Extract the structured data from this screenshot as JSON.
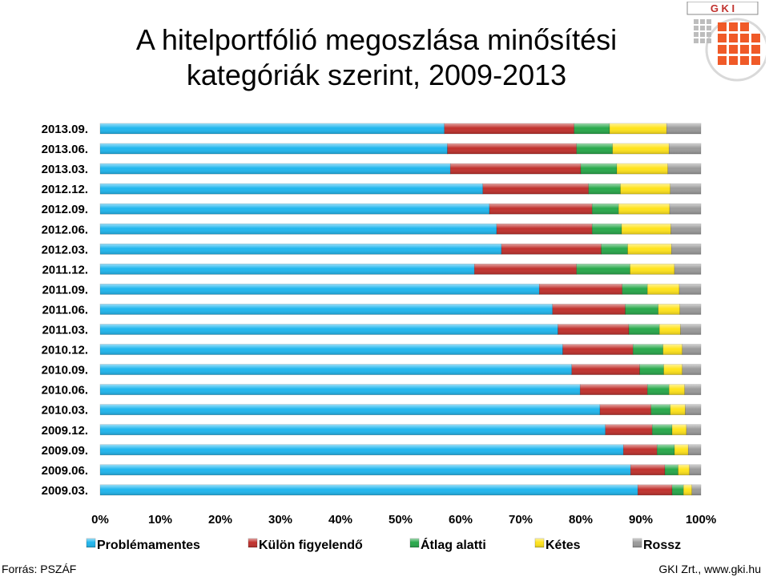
{
  "title": {
    "line1": "A hitelportfólió megoszlása minősítési",
    "line2": "kategóriák szerint, 2009-2013"
  },
  "logo": {
    "text": "G K I"
  },
  "colors": {
    "problemamentes": "#1fb6ee",
    "kulon": "#c0302c",
    "atlag": "#27a84a",
    "ketes": "#ffe31a",
    "rossz": "#9a9a9a"
  },
  "footer": {
    "source": "Forrás: PSZÁF",
    "credit": "GKI Zrt., www.gki.hu"
  },
  "chart_data": {
    "type": "bar",
    "orientation": "horizontal",
    "stacked": "percent",
    "categories": [
      "2013.09.",
      "2013.06.",
      "2013.03.",
      "2012.12.",
      "2012.09.",
      "2012.06.",
      "2012.03.",
      "2011.12.",
      "2011.09.",
      "2011.06.",
      "2011.03.",
      "2010.12.",
      "2010.09.",
      "2010.06.",
      "2010.03.",
      "2009.12.",
      "2009.09.",
      "2009.06.",
      "2009.03."
    ],
    "series": [
      {
        "name": "Problémamentes",
        "color": "#1fb6ee",
        "values": [
          57.3,
          57.8,
          58.3,
          63.7,
          64.8,
          66.0,
          66.8,
          62.3,
          73.1,
          75.3,
          76.2,
          77.0,
          78.5,
          79.9,
          83.2,
          84.1,
          87.1,
          88.3,
          89.5
        ]
      },
      {
        "name": "Külön figyelendő",
        "color": "#c0302c",
        "values": [
          21.6,
          21.5,
          21.7,
          17.6,
          17.1,
          15.9,
          16.6,
          17.0,
          13.8,
          12.1,
          11.8,
          11.7,
          11.3,
          11.2,
          8.5,
          7.8,
          5.6,
          5.7,
          5.7
        ]
      },
      {
        "name": "Átlag alatti",
        "color": "#27a84a",
        "values": [
          5.9,
          6.0,
          6.0,
          5.3,
          4.4,
          4.9,
          4.4,
          8.9,
          4.2,
          5.5,
          5.1,
          5.0,
          4.0,
          3.6,
          3.2,
          3.3,
          2.9,
          2.2,
          1.9
        ]
      },
      {
        "name": "Kétes",
        "color": "#ffe31a",
        "values": [
          9.5,
          9.4,
          8.5,
          8.3,
          8.5,
          8.2,
          7.3,
          7.4,
          5.3,
          3.6,
          3.5,
          3.2,
          3.1,
          2.6,
          2.5,
          2.4,
          2.3,
          1.9,
          1.4
        ]
      },
      {
        "name": "Rossz",
        "color": "#9a9a9a",
        "values": [
          5.7,
          5.3,
          5.5,
          5.1,
          5.2,
          5.0,
          4.9,
          4.4,
          3.6,
          3.5,
          3.4,
          3.1,
          3.1,
          2.7,
          2.6,
          2.4,
          2.1,
          1.9,
          1.5
        ]
      }
    ],
    "xlim": [
      0,
      100
    ],
    "x_ticks": [
      "0%",
      "10%",
      "20%",
      "30%",
      "40%",
      "50%",
      "60%",
      "70%",
      "80%",
      "90%",
      "100%"
    ],
    "grid": false,
    "legend": "bottom"
  }
}
